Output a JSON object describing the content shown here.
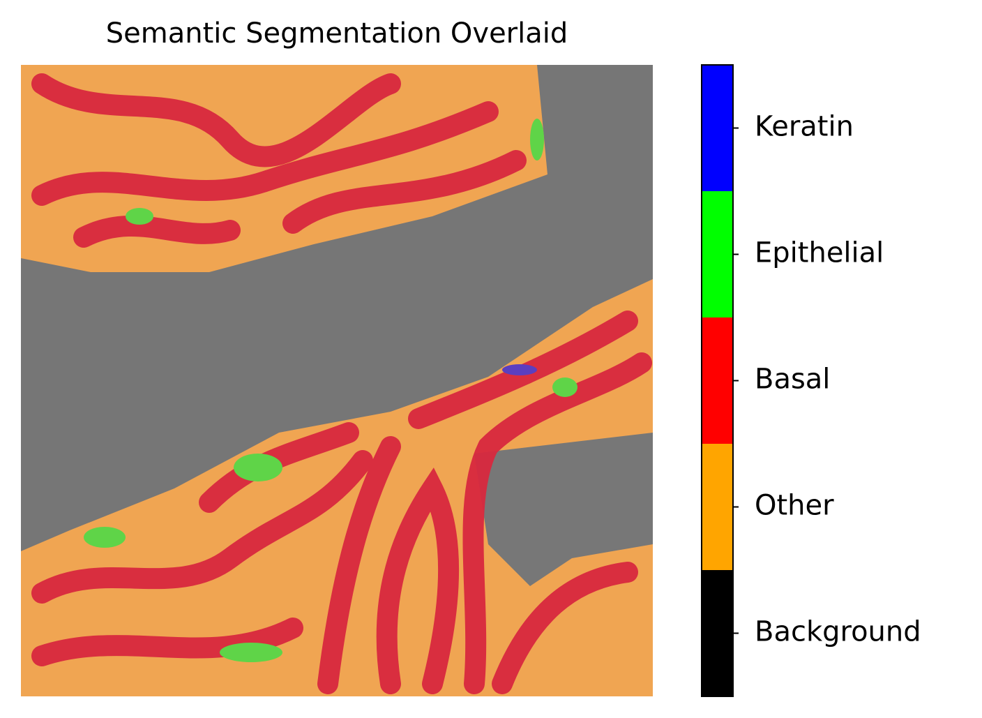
{
  "chart_data": {
    "type": "segmentation-image",
    "title": "Semantic Segmentation Overlaid",
    "colorbar": {
      "categories": [
        "Background",
        "Other",
        "Basal",
        "Epithelial",
        "Keratin"
      ],
      "colors": [
        "#000000",
        "#ffa500",
        "#ff0000",
        "#00ff00",
        "#0000ff"
      ]
    }
  }
}
